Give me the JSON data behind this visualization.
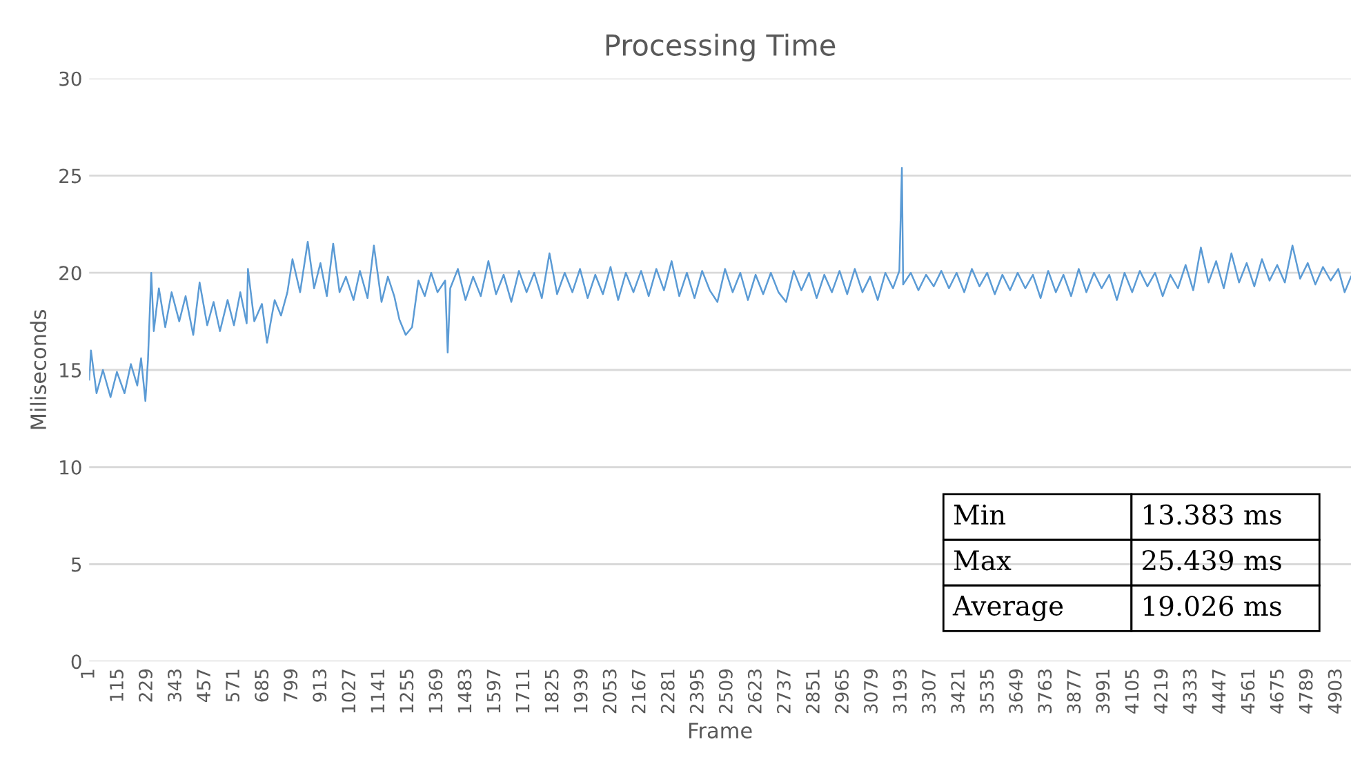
{
  "chart_data": {
    "type": "line",
    "title": "Processing Time",
    "xlabel": "Frame",
    "ylabel": "Miliseconds",
    "xlim": [
      1,
      4960
    ],
    "xticks": [
      1,
      115,
      229,
      343,
      457,
      571,
      685,
      799,
      913,
      1027,
      1141,
      1255,
      1369,
      1483,
      1597,
      1711,
      1825,
      1939,
      2053,
      2167,
      2281,
      2395,
      2509,
      2623,
      2737,
      2851,
      2965,
      3079,
      3193,
      3307,
      3421,
      3535,
      3649,
      3763,
      3877,
      3991,
      4105,
      4219,
      4333,
      4447,
      4561,
      4675,
      4789,
      4903
    ],
    "ylim": [
      0,
      30
    ],
    "yticks": [
      0,
      5,
      10,
      15,
      20,
      25,
      30
    ],
    "grid": "y",
    "legend": false,
    "marker": "none",
    "line_style": "solid",
    "annotations": [
      "Min",
      "13.383 ms",
      "Max",
      "25.439 ms",
      "Average",
      "19.026 ms"
    ],
    "series": [
      {
        "color": "#5b9bd5",
        "x": [
          1,
          8,
          30,
          55,
          85,
          110,
          140,
          165,
          190,
          205,
          222,
          232,
          245,
          255,
          275,
          300,
          325,
          355,
          380,
          410,
          435,
          465,
          490,
          515,
          545,
          570,
          595,
          620,
          625,
          650,
          680,
          700,
          730,
          755,
          780,
          800,
          830,
          860,
          885,
          910,
          935,
          960,
          985,
          1010,
          1040,
          1065,
          1095,
          1120,
          1150,
          1175,
          1200,
          1220,
          1245,
          1270,
          1295,
          1320,
          1345,
          1370,
          1400,
          1410,
          1420,
          1450,
          1480,
          1510,
          1540,
          1570,
          1600,
          1630,
          1660,
          1690,
          1720,
          1750,
          1780,
          1810,
          1840,
          1870,
          1900,
          1930,
          1960,
          1990,
          2020,
          2050,
          2080,
          2110,
          2140,
          2170,
          2200,
          2230,
          2260,
          2290,
          2320,
          2350,
          2380,
          2410,
          2440,
          2470,
          2500,
          2530,
          2560,
          2590,
          2620,
          2650,
          2680,
          2710,
          2740,
          2770,
          2800,
          2830,
          2860,
          2890,
          2920,
          2950,
          2980,
          3010,
          3040,
          3070,
          3100,
          3130,
          3160,
          3185,
          3195,
          3200,
          3230,
          3260,
          3290,
          3320,
          3350,
          3380,
          3410,
          3440,
          3470,
          3500,
          3530,
          3560,
          3590,
          3620,
          3650,
          3680,
          3710,
          3740,
          3770,
          3800,
          3830,
          3860,
          3890,
          3920,
          3950,
          3980,
          4010,
          4040,
          4070,
          4100,
          4130,
          4160,
          4190,
          4220,
          4250,
          4280,
          4310,
          4340,
          4370,
          4400,
          4430,
          4460,
          4490,
          4520,
          4550,
          4580,
          4610,
          4640,
          4670,
          4700,
          4730,
          4760,
          4790,
          4820,
          4850,
          4880,
          4910,
          4935,
          4960
        ],
        "values": [
          14.5,
          16.0,
          13.8,
          15.0,
          13.6,
          14.9,
          13.8,
          15.3,
          14.2,
          15.6,
          13.4,
          15.5,
          20.0,
          17.0,
          19.2,
          17.2,
          19.0,
          17.5,
          18.8,
          16.8,
          19.5,
          17.3,
          18.5,
          17.0,
          18.6,
          17.3,
          19.0,
          17.4,
          20.2,
          17.5,
          18.4,
          16.4,
          18.6,
          17.8,
          19.0,
          20.7,
          19.0,
          21.6,
          19.2,
          20.5,
          18.8,
          21.5,
          19.0,
          19.8,
          18.6,
          20.1,
          18.7,
          21.4,
          18.5,
          19.8,
          18.8,
          17.6,
          16.8,
          17.2,
          19.6,
          18.8,
          20.0,
          19.0,
          19.6,
          15.9,
          19.2,
          20.2,
          18.6,
          19.8,
          18.8,
          20.6,
          18.9,
          19.9,
          18.5,
          20.1,
          19.0,
          20.0,
          18.7,
          21.0,
          18.9,
          20.0,
          19.0,
          20.2,
          18.7,
          19.9,
          18.9,
          20.3,
          18.6,
          20.0,
          19.0,
          20.1,
          18.8,
          20.2,
          19.1,
          20.6,
          18.8,
          20.0,
          18.7,
          20.1,
          19.1,
          18.5,
          20.2,
          19.0,
          20.0,
          18.6,
          19.9,
          18.9,
          20.0,
          19.0,
          18.5,
          20.1,
          19.1,
          20.0,
          18.7,
          19.9,
          19.0,
          20.1,
          18.9,
          20.2,
          19.0,
          19.8,
          18.6,
          20.0,
          19.2,
          20.1,
          25.4,
          19.4,
          20.0,
          19.1,
          19.9,
          19.3,
          20.1,
          19.2,
          20.0,
          19.0,
          20.2,
          19.3,
          20.0,
          18.9,
          19.9,
          19.1,
          20.0,
          19.2,
          19.9,
          18.7,
          20.1,
          19.0,
          19.9,
          18.8,
          20.2,
          19.0,
          20.0,
          19.2,
          19.9,
          18.6,
          20.0,
          19.0,
          20.1,
          19.3,
          20.0,
          18.8,
          19.9,
          19.2,
          20.4,
          19.1,
          21.3,
          19.5,
          20.6,
          19.2,
          21.0,
          19.5,
          20.5,
          19.3,
          20.7,
          19.6,
          20.4,
          19.5,
          21.4,
          19.7,
          20.5,
          19.4,
          20.3,
          19.6,
          20.2,
          19.0,
          19.8
        ]
      }
    ]
  }
}
